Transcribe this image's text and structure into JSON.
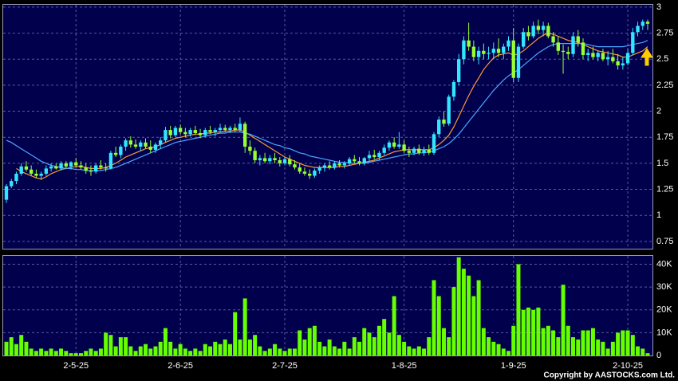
{
  "chart_data": {
    "type": "candlestick",
    "categories": [
      null,
      null,
      null,
      null,
      null,
      null,
      null,
      null,
      null,
      null,
      null,
      null,
      null,
      null,
      "2-5-25",
      null,
      null,
      null,
      null,
      null,
      null,
      null,
      null,
      null,
      null,
      null,
      null,
      null,
      null,
      null,
      null,
      null,
      null,
      null,
      null,
      "2-6-25",
      null,
      null,
      null,
      null,
      null,
      null,
      null,
      null,
      null,
      null,
      null,
      null,
      null,
      null,
      null,
      null,
      null,
      null,
      null,
      null,
      "2-7-25",
      null,
      null,
      null,
      null,
      null,
      null,
      null,
      null,
      null,
      null,
      null,
      null,
      null,
      null,
      null,
      null,
      null,
      null,
      null,
      null,
      null,
      null,
      null,
      "1-8-25",
      null,
      null,
      null,
      null,
      null,
      null,
      null,
      null,
      null,
      null,
      null,
      null,
      null,
      null,
      null,
      null,
      null,
      null,
      null,
      null,
      null,
      "1-9-25",
      null,
      null,
      null,
      null,
      null,
      null,
      null,
      null,
      null,
      null,
      null,
      null,
      null,
      null,
      null,
      null,
      null,
      null,
      null,
      null,
      null,
      null,
      "2-10-25",
      null,
      null,
      null,
      null
    ],
    "open": [
      1.15,
      1.28,
      1.33,
      1.4,
      1.47,
      1.44,
      1.4,
      1.38,
      1.4,
      1.45,
      1.47,
      1.45,
      1.5,
      1.47,
      1.51,
      1.48,
      1.46,
      1.43,
      1.42,
      1.48,
      1.46,
      1.45,
      1.6,
      1.58,
      1.66,
      1.72,
      1.68,
      1.66,
      1.7,
      1.66,
      1.63,
      1.68,
      1.72,
      1.82,
      1.77,
      1.84,
      1.8,
      1.78,
      1.82,
      1.79,
      1.77,
      1.82,
      1.8,
      1.82,
      1.84,
      1.82,
      1.84,
      1.82,
      1.88,
      1.66,
      1.62,
      1.53,
      1.55,
      1.52,
      1.55,
      1.53,
      1.5,
      1.54,
      1.49,
      1.46,
      1.42,
      1.4,
      1.38,
      1.43,
      1.46,
      1.48,
      1.46,
      1.5,
      1.48,
      1.5,
      1.54,
      1.52,
      1.5,
      1.55,
      1.58,
      1.56,
      1.6,
      1.65,
      1.7,
      1.66,
      1.68,
      1.62,
      1.6,
      1.64,
      1.6,
      1.63,
      1.6,
      1.78,
      1.92,
      1.88,
      2.14,
      2.28,
      2.5,
      2.68,
      2.62,
      2.52,
      2.58,
      2.55,
      2.56,
      2.6,
      2.56,
      2.62,
      2.68,
      2.32,
      2.62,
      2.76,
      2.72,
      2.82,
      2.78,
      2.82,
      2.72,
      2.66,
      2.58,
      2.57,
      2.55,
      2.72,
      2.66,
      2.54,
      2.56,
      2.52,
      2.56,
      2.5,
      2.52,
      2.48,
      2.44,
      2.46,
      2.56,
      2.76,
      2.82,
      2.86
    ],
    "high": [
      1.3,
      1.35,
      1.42,
      1.5,
      1.52,
      1.48,
      1.44,
      1.42,
      1.48,
      1.5,
      1.5,
      1.52,
      1.52,
      1.52,
      1.55,
      1.52,
      1.5,
      1.48,
      1.5,
      1.53,
      1.5,
      1.62,
      1.66,
      1.68,
      1.74,
      1.76,
      1.73,
      1.72,
      1.74,
      1.72,
      1.7,
      1.75,
      1.85,
      1.86,
      1.86,
      1.87,
      1.84,
      1.84,
      1.86,
      1.83,
      1.84,
      1.86,
      1.84,
      1.88,
      1.87,
      1.86,
      1.88,
      1.94,
      1.9,
      1.72,
      1.65,
      1.58,
      1.6,
      1.58,
      1.6,
      1.56,
      1.56,
      1.58,
      1.53,
      1.5,
      1.46,
      1.44,
      1.45,
      1.48,
      1.5,
      1.52,
      1.52,
      1.53,
      1.52,
      1.56,
      1.58,
      1.56,
      1.56,
      1.62,
      1.63,
      1.62,
      1.68,
      1.72,
      1.75,
      1.8,
      1.72,
      1.66,
      1.66,
      1.68,
      1.66,
      1.68,
      1.8,
      1.95,
      2.0,
      2.16,
      2.3,
      2.55,
      2.72,
      2.85,
      2.68,
      2.62,
      2.65,
      2.62,
      2.66,
      2.7,
      2.65,
      2.72,
      2.8,
      2.65,
      2.8,
      2.82,
      2.86,
      2.88,
      2.86,
      2.85,
      2.76,
      2.72,
      2.64,
      2.62,
      2.76,
      2.78,
      2.7,
      2.6,
      2.62,
      2.58,
      2.6,
      2.58,
      2.6,
      2.55,
      2.52,
      2.6,
      2.8,
      2.86,
      2.88,
      2.88
    ],
    "low": [
      1.12,
      1.26,
      1.3,
      1.38,
      1.42,
      1.38,
      1.36,
      1.34,
      1.38,
      1.42,
      1.44,
      1.43,
      1.45,
      1.44,
      1.46,
      1.44,
      1.4,
      1.38,
      1.4,
      1.44,
      1.42,
      1.44,
      1.56,
      1.55,
      1.62,
      1.65,
      1.64,
      1.62,
      1.64,
      1.6,
      1.6,
      1.64,
      1.7,
      1.74,
      1.75,
      1.78,
      1.75,
      1.76,
      1.77,
      1.74,
      1.75,
      1.78,
      1.76,
      1.8,
      1.8,
      1.79,
      1.8,
      1.8,
      1.6,
      1.58,
      1.5,
      1.48,
      1.5,
      1.49,
      1.5,
      1.47,
      1.48,
      1.47,
      1.44,
      1.4,
      1.38,
      1.35,
      1.36,
      1.4,
      1.42,
      1.44,
      1.44,
      1.46,
      1.45,
      1.48,
      1.5,
      1.48,
      1.48,
      1.52,
      1.54,
      1.53,
      1.58,
      1.62,
      1.64,
      1.64,
      1.6,
      1.56,
      1.58,
      1.58,
      1.57,
      1.58,
      1.58,
      1.75,
      1.85,
      1.86,
      2.1,
      2.25,
      2.45,
      2.58,
      2.48,
      2.45,
      2.5,
      2.5,
      2.5,
      2.52,
      2.5,
      2.58,
      2.28,
      2.28,
      2.6,
      2.68,
      2.7,
      2.74,
      2.72,
      2.7,
      2.62,
      2.54,
      2.36,
      2.5,
      2.52,
      2.62,
      2.5,
      2.48,
      2.5,
      2.48,
      2.48,
      2.44,
      2.46,
      2.4,
      2.4,
      2.44,
      2.54,
      2.72,
      2.78,
      2.78
    ],
    "close": [
      1.28,
      1.33,
      1.4,
      1.47,
      1.44,
      1.4,
      1.38,
      1.4,
      1.45,
      1.47,
      1.45,
      1.5,
      1.47,
      1.51,
      1.48,
      1.46,
      1.43,
      1.42,
      1.48,
      1.46,
      1.45,
      1.6,
      1.58,
      1.66,
      1.72,
      1.68,
      1.66,
      1.7,
      1.66,
      1.63,
      1.68,
      1.72,
      1.82,
      1.77,
      1.84,
      1.8,
      1.78,
      1.82,
      1.79,
      1.77,
      1.82,
      1.8,
      1.82,
      1.84,
      1.82,
      1.84,
      1.82,
      1.88,
      1.66,
      1.62,
      1.53,
      1.55,
      1.52,
      1.55,
      1.53,
      1.5,
      1.54,
      1.49,
      1.46,
      1.42,
      1.4,
      1.38,
      1.43,
      1.46,
      1.48,
      1.46,
      1.5,
      1.48,
      1.5,
      1.54,
      1.52,
      1.5,
      1.55,
      1.58,
      1.56,
      1.6,
      1.65,
      1.7,
      1.66,
      1.68,
      1.62,
      1.6,
      1.64,
      1.6,
      1.63,
      1.6,
      1.78,
      1.92,
      1.88,
      2.14,
      2.28,
      2.5,
      2.68,
      2.62,
      2.52,
      2.58,
      2.55,
      2.56,
      2.6,
      2.56,
      2.62,
      2.68,
      2.32,
      2.62,
      2.76,
      2.72,
      2.82,
      2.78,
      2.82,
      2.72,
      2.66,
      2.58,
      2.57,
      2.55,
      2.72,
      2.66,
      2.54,
      2.56,
      2.52,
      2.56,
      2.5,
      2.52,
      2.48,
      2.44,
      2.46,
      2.56,
      2.76,
      2.82,
      2.86,
      2.84
    ],
    "up_color": "#33e6ff",
    "down_color": "#99ff33",
    "ma": [
      {
        "color": "#ff9933",
        "values": [
          null,
          null,
          1.45,
          1.42,
          1.4,
          1.38,
          1.36,
          1.35,
          1.37,
          1.4,
          1.42,
          1.44,
          1.45,
          1.46,
          1.47,
          1.47,
          1.46,
          1.45,
          1.45,
          1.45,
          1.46,
          1.48,
          1.5,
          1.53,
          1.56,
          1.58,
          1.6,
          1.62,
          1.64,
          1.65,
          1.66,
          1.68,
          1.7,
          1.72,
          1.74,
          1.75,
          1.76,
          1.77,
          1.78,
          1.78,
          1.79,
          1.79,
          1.8,
          1.8,
          1.81,
          1.81,
          1.82,
          1.82,
          1.8,
          1.77,
          1.74,
          1.71,
          1.68,
          1.65,
          1.62,
          1.59,
          1.56,
          1.54,
          1.52,
          1.5,
          1.48,
          1.47,
          1.46,
          1.46,
          1.46,
          1.46,
          1.46,
          1.47,
          1.47,
          1.48,
          1.49,
          1.5,
          1.51,
          1.52,
          1.53,
          1.55,
          1.57,
          1.59,
          1.61,
          1.62,
          1.63,
          1.63,
          1.63,
          1.63,
          1.63,
          1.63,
          1.65,
          1.68,
          1.72,
          1.77,
          1.85,
          1.95,
          2.05,
          2.15,
          2.24,
          2.32,
          2.4,
          2.46,
          2.51,
          2.54,
          2.55,
          2.56,
          2.54,
          2.55,
          2.58,
          2.62,
          2.66,
          2.7,
          2.73,
          2.75,
          2.74,
          2.72,
          2.7,
          2.68,
          2.67,
          2.66,
          2.64,
          2.62,
          2.6,
          2.58,
          2.57,
          2.56,
          2.55,
          2.54,
          2.52,
          2.52,
          2.54,
          2.56,
          2.58,
          2.62
        ]
      },
      {
        "color": "#4da6ff",
        "values": [
          1.72,
          1.7,
          1.67,
          1.64,
          1.61,
          1.58,
          1.55,
          1.52,
          1.5,
          1.48,
          1.47,
          1.46,
          1.45,
          1.45,
          1.44,
          1.44,
          1.43,
          1.43,
          1.43,
          1.43,
          1.44,
          1.45,
          1.46,
          1.48,
          1.5,
          1.52,
          1.54,
          1.56,
          1.58,
          1.6,
          1.62,
          1.64,
          1.66,
          1.68,
          1.7,
          1.71,
          1.72,
          1.73,
          1.74,
          1.75,
          1.76,
          1.77,
          1.78,
          1.79,
          1.79,
          1.8,
          1.8,
          1.8,
          1.79,
          1.78,
          1.76,
          1.74,
          1.72,
          1.7,
          1.68,
          1.67,
          1.65,
          1.64,
          1.62,
          1.6,
          1.59,
          1.57,
          1.56,
          1.55,
          1.54,
          1.53,
          1.52,
          1.51,
          1.51,
          1.5,
          1.5,
          1.5,
          1.5,
          1.51,
          1.52,
          1.53,
          1.54,
          1.55,
          1.56,
          1.57,
          1.58,
          1.59,
          1.59,
          1.6,
          1.6,
          1.61,
          1.62,
          1.64,
          1.66,
          1.69,
          1.73,
          1.78,
          1.84,
          1.9,
          1.96,
          2.02,
          2.08,
          2.14,
          2.2,
          2.25,
          2.3,
          2.34,
          2.37,
          2.4,
          2.44,
          2.48,
          2.52,
          2.56,
          2.59,
          2.62,
          2.64,
          2.65,
          2.65,
          2.65,
          2.65,
          2.65,
          2.65,
          2.64,
          2.63,
          2.62,
          2.62,
          2.62,
          2.62,
          2.62,
          2.62,
          2.63,
          2.64,
          2.65,
          2.66,
          2.68
        ]
      }
    ],
    "ylim": [
      0.68,
      3.03
    ],
    "yticks": [
      0.75,
      1,
      1.25,
      1.5,
      1.75,
      2,
      2.25,
      2.5,
      2.75,
      3
    ],
    "grid": true,
    "volume": {
      "color": "#66ff00",
      "values": [
        6000,
        8000,
        5000,
        9000,
        6000,
        3000,
        2000,
        3000,
        2000,
        3000,
        2000,
        3000,
        2000,
        1000,
        1000,
        1000,
        2000,
        3000,
        2000,
        3000,
        10000,
        9000,
        4000,
        8000,
        8000,
        4000,
        2000,
        4000,
        5000,
        3000,
        4000,
        6000,
        12000,
        6000,
        3000,
        5000,
        3000,
        2000,
        3000,
        2000,
        5000,
        4000,
        6000,
        5000,
        7000,
        5000,
        19000,
        7000,
        25000,
        7000,
        9000,
        4000,
        2000,
        3000,
        5000,
        3000,
        2000,
        3000,
        3000,
        11000,
        7000,
        12000,
        13000,
        6000,
        4000,
        7000,
        4000,
        3000,
        6000,
        3000,
        8000,
        6000,
        12000,
        10000,
        8000,
        13000,
        16000,
        10000,
        26000,
        9000,
        6000,
        4000,
        3000,
        4000,
        3000,
        8000,
        33000,
        26000,
        12000,
        8000,
        30000,
        43000,
        38000,
        35000,
        26000,
        33000,
        12000,
        8000,
        6000,
        5000,
        3000,
        2000,
        13000,
        40000,
        20000,
        21000,
        20000,
        21000,
        12000,
        13000,
        11000,
        8000,
        31000,
        13000,
        8000,
        7000,
        11000,
        11000,
        12000,
        7000,
        6000,
        3000,
        6000,
        10000,
        11000,
        11000,
        9000,
        4000,
        3000,
        1000
      ],
      "ylim": [
        0,
        44000
      ],
      "yticks": [
        0,
        {
          "value": 10000,
          "label": "10K"
        },
        {
          "value": 20000,
          "label": "20K"
        },
        {
          "value": 30000,
          "label": "30K"
        },
        {
          "value": 40000,
          "label": "40K"
        }
      ]
    },
    "copyright": "Copyright by AASTOCKS.com Ltd."
  }
}
